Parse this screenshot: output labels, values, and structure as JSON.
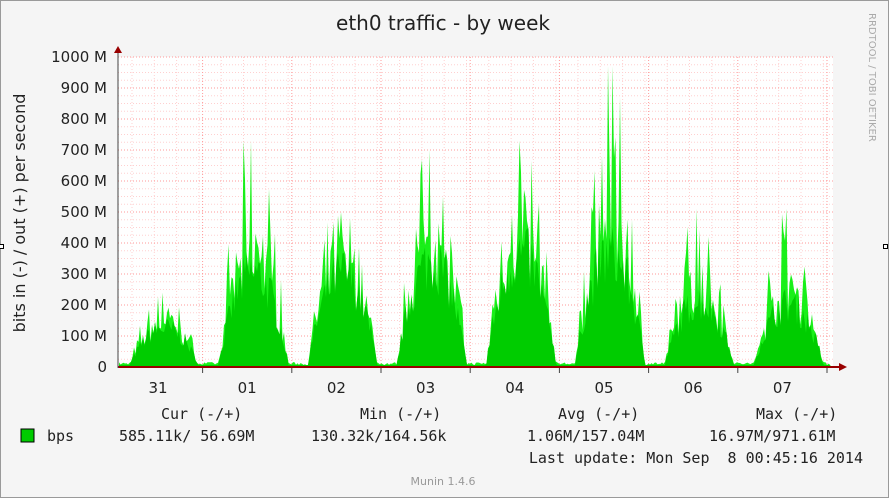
{
  "chart_data": {
    "type": "area",
    "title": "eth0 traffic - by week",
    "ylabel": "bits in (-) / out (+) per second",
    "watermark": "RRDTOOL / TOBI OETIKER",
    "ylim": [
      0,
      1000
    ],
    "y_unit": "M",
    "y_ticks": [
      "0",
      "100 M",
      "200 M",
      "300 M",
      "400 M",
      "500 M",
      "600 M",
      "700 M",
      "800 M",
      "900 M",
      "1000 M"
    ],
    "x_ticks": [
      "31",
      "01",
      "02",
      "03",
      "04",
      "05",
      "06",
      "07"
    ],
    "grid": true,
    "series": [
      {
        "name": "bps",
        "color": "#00cc00",
        "peak_color": "#00ee00",
        "baseline_color": "#990000",
        "daily": [
          {
            "day": "31",
            "typical": 125,
            "peak": 240
          },
          {
            "day": "01",
            "typical": 300,
            "peak": 730
          },
          {
            "day": "02",
            "typical": 300,
            "peak": 500
          },
          {
            "day": "03",
            "typical": 340,
            "peak": 700
          },
          {
            "day": "04",
            "typical": 360,
            "peak": 730
          },
          {
            "day": "05",
            "typical": 360,
            "peak": 970
          },
          {
            "day": "06",
            "typical": 210,
            "peak": 510
          },
          {
            "day": "07",
            "typical": 200,
            "peak": 510
          }
        ]
      }
    ]
  },
  "legend": {
    "headers": [
      "Cur (-/+)",
      "Min (-/+)",
      "Avg (-/+)",
      "Max (-/+)"
    ],
    "rows": [
      {
        "name": "bps",
        "color": "#00cc00",
        "cur": "585.11k/ 56.69M",
        "min": "130.32k/164.56k",
        "avg": "1.06M/157.04M",
        "max": "16.97M/971.61M"
      }
    ]
  },
  "last_update": "Last update: Mon Sep  8 00:45:16 2014",
  "footer": "Munin 1.4.6"
}
